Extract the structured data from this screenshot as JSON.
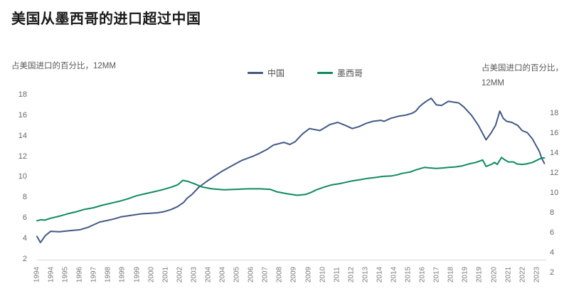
{
  "title": "美国从墨西哥的进口超过中国",
  "left_axis": {
    "caption": "占美国进口的百分比，12MM",
    "ticks": [
      "18",
      "16",
      "14",
      "12",
      "10",
      "8",
      "6",
      "4",
      "2"
    ]
  },
  "right_axis": {
    "caption_line1": "占美国进口的百分比，",
    "caption_line2": "12MM",
    "ticks": [
      "18",
      "16",
      "14",
      "12",
      "10",
      "8",
      "6",
      "4",
      "2"
    ]
  },
  "legend": {
    "items": [
      {
        "label": "中国",
        "color": "#435a85"
      },
      {
        "label": "墨西哥",
        "color": "#108a60"
      }
    ]
  },
  "colors": {
    "china": "#435a85",
    "mexico": "#108a60",
    "axis_line": "#d9d9d9",
    "tick_text": "#696969"
  },
  "x_labels": [
    "1994",
    "1994",
    "1995",
    "1996",
    "1997",
    "1998",
    "1999",
    "1999",
    "2000",
    "2001",
    "2002",
    "2003",
    "2004",
    "2004",
    "2005",
    "2006",
    "2007",
    "2008",
    "2009",
    "2009",
    "2010",
    "2011",
    "2012",
    "2013",
    "2014",
    "2014",
    "2015",
    "2016",
    "2017",
    "2018",
    "2019",
    "2019",
    "2020",
    "2021",
    "2022",
    "2023"
  ],
  "chart_data": {
    "type": "line",
    "title": "美国从墨西哥的进口超过中国",
    "x_unit": "year (monthly series, Jan 1994 – mid 2023)",
    "left_axis_label": "占美国进口的百分比，12MM",
    "right_axis_label": "占美国进口的百分比，12MM",
    "left_ylim": [
      2,
      18
    ],
    "right_ylim": [
      2,
      18
    ],
    "grid": false,
    "legend_position": "top-center",
    "series": [
      {
        "name": "中国",
        "axis": "left",
        "color": "#435a85",
        "points": [
          [
            1994.0,
            4.2
          ],
          [
            1994.2,
            3.6
          ],
          [
            1994.5,
            4.3
          ],
          [
            1994.8,
            4.7
          ],
          [
            1995.3,
            4.65
          ],
          [
            1995.9,
            4.75
          ],
          [
            1996.5,
            4.85
          ],
          [
            1997.0,
            5.1
          ],
          [
            1997.65,
            5.6
          ],
          [
            1998.1,
            5.75
          ],
          [
            1998.5,
            5.9
          ],
          [
            1998.9,
            6.1
          ],
          [
            1999.3,
            6.2
          ],
          [
            1999.7,
            6.3
          ],
          [
            2000.1,
            6.4
          ],
          [
            2000.6,
            6.45
          ],
          [
            2001.0,
            6.5
          ],
          [
            2001.4,
            6.6
          ],
          [
            2001.8,
            6.8
          ],
          [
            2002.2,
            7.1
          ],
          [
            2002.55,
            7.5
          ],
          [
            2002.75,
            7.9
          ],
          [
            2003.05,
            8.3
          ],
          [
            2003.45,
            9.0
          ],
          [
            2003.9,
            9.55
          ],
          [
            2004.3,
            10.0
          ],
          [
            2004.8,
            10.55
          ],
          [
            2005.4,
            11.1
          ],
          [
            2005.95,
            11.6
          ],
          [
            2006.6,
            12.0
          ],
          [
            2007.0,
            12.3
          ],
          [
            2007.4,
            12.65
          ],
          [
            2007.8,
            13.1
          ],
          [
            2008.4,
            13.35
          ],
          [
            2008.75,
            13.15
          ],
          [
            2009.05,
            13.4
          ],
          [
            2009.5,
            14.2
          ],
          [
            2009.9,
            14.7
          ],
          [
            2010.5,
            14.5
          ],
          [
            2010.7,
            14.7
          ],
          [
            2011.1,
            15.1
          ],
          [
            2011.55,
            15.3
          ],
          [
            2012.0,
            15.0
          ],
          [
            2012.4,
            14.7
          ],
          [
            2012.8,
            14.9
          ],
          [
            2013.2,
            15.2
          ],
          [
            2013.6,
            15.4
          ],
          [
            2014.05,
            15.5
          ],
          [
            2014.25,
            15.4
          ],
          [
            2014.65,
            15.7
          ],
          [
            2015.1,
            15.9
          ],
          [
            2015.5,
            16.0
          ],
          [
            2015.9,
            16.2
          ],
          [
            2016.1,
            16.4
          ],
          [
            2016.3,
            16.8
          ],
          [
            2016.5,
            17.1
          ],
          [
            2016.75,
            17.4
          ],
          [
            2017.0,
            17.65
          ],
          [
            2017.3,
            17.0
          ],
          [
            2017.6,
            16.95
          ],
          [
            2018.0,
            17.35
          ],
          [
            2018.6,
            17.2
          ],
          [
            2018.9,
            16.8
          ],
          [
            2019.35,
            16.0
          ],
          [
            2019.75,
            15.0
          ],
          [
            2020.2,
            13.6
          ],
          [
            2020.5,
            14.3
          ],
          [
            2020.75,
            15.0
          ],
          [
            2021.0,
            16.4
          ],
          [
            2021.2,
            15.7
          ],
          [
            2021.4,
            15.4
          ],
          [
            2021.7,
            15.3
          ],
          [
            2022.05,
            15.0
          ],
          [
            2022.3,
            14.5
          ],
          [
            2022.6,
            14.3
          ],
          [
            2022.9,
            13.7
          ],
          [
            2023.1,
            13.1
          ],
          [
            2023.3,
            12.5
          ],
          [
            2023.45,
            11.8
          ],
          [
            2023.6,
            11.3
          ]
        ]
      },
      {
        "name": "墨西哥",
        "axis": "right",
        "color": "#108a60",
        "points": [
          [
            1994.0,
            7.2
          ],
          [
            1994.25,
            7.3
          ],
          [
            1994.45,
            7.25
          ],
          [
            1994.8,
            7.45
          ],
          [
            1995.3,
            7.65
          ],
          [
            1995.8,
            7.9
          ],
          [
            1996.3,
            8.1
          ],
          [
            1996.8,
            8.35
          ],
          [
            1997.3,
            8.5
          ],
          [
            1997.8,
            8.75
          ],
          [
            1998.3,
            8.95
          ],
          [
            1998.8,
            9.15
          ],
          [
            1999.3,
            9.4
          ],
          [
            1999.8,
            9.7
          ],
          [
            2000.3,
            9.9
          ],
          [
            2000.8,
            10.1
          ],
          [
            2001.3,
            10.3
          ],
          [
            2001.8,
            10.55
          ],
          [
            2002.2,
            10.8
          ],
          [
            2002.35,
            11.0
          ],
          [
            2002.5,
            11.25
          ],
          [
            2002.8,
            11.15
          ],
          [
            2003.2,
            10.9
          ],
          [
            2003.6,
            10.6
          ],
          [
            2004.2,
            10.4
          ],
          [
            2004.9,
            10.3
          ],
          [
            2005.6,
            10.35
          ],
          [
            2006.3,
            10.4
          ],
          [
            2007.0,
            10.4
          ],
          [
            2007.6,
            10.35
          ],
          [
            2008.0,
            10.1
          ],
          [
            2008.6,
            9.9
          ],
          [
            2009.2,
            9.75
          ],
          [
            2009.7,
            9.85
          ],
          [
            2010.0,
            10.05
          ],
          [
            2010.3,
            10.3
          ],
          [
            2010.8,
            10.6
          ],
          [
            2011.2,
            10.8
          ],
          [
            2011.6,
            10.9
          ],
          [
            2012.0,
            11.05
          ],
          [
            2012.4,
            11.2
          ],
          [
            2012.8,
            11.3
          ],
          [
            2013.3,
            11.45
          ],
          [
            2013.8,
            11.55
          ],
          [
            2014.2,
            11.65
          ],
          [
            2014.7,
            11.7
          ],
          [
            2015.0,
            11.8
          ],
          [
            2015.3,
            11.95
          ],
          [
            2015.8,
            12.1
          ],
          [
            2016.1,
            12.3
          ],
          [
            2016.4,
            12.45
          ],
          [
            2016.6,
            12.55
          ],
          [
            2016.9,
            12.5
          ],
          [
            2017.3,
            12.45
          ],
          [
            2017.7,
            12.5
          ],
          [
            2018.0,
            12.55
          ],
          [
            2018.4,
            12.6
          ],
          [
            2018.8,
            12.7
          ],
          [
            2019.2,
            12.9
          ],
          [
            2019.6,
            13.05
          ],
          [
            2020.0,
            13.3
          ],
          [
            2020.2,
            12.65
          ],
          [
            2020.5,
            12.85
          ],
          [
            2020.7,
            13.05
          ],
          [
            2020.85,
            12.85
          ],
          [
            2021.1,
            13.55
          ],
          [
            2021.3,
            13.3
          ],
          [
            2021.5,
            13.1
          ],
          [
            2021.8,
            13.1
          ],
          [
            2022.0,
            12.9
          ],
          [
            2022.3,
            12.85
          ],
          [
            2022.55,
            12.9
          ],
          [
            2022.9,
            13.05
          ],
          [
            2023.2,
            13.3
          ],
          [
            2023.45,
            13.5
          ],
          [
            2023.6,
            13.5
          ]
        ]
      }
    ]
  }
}
